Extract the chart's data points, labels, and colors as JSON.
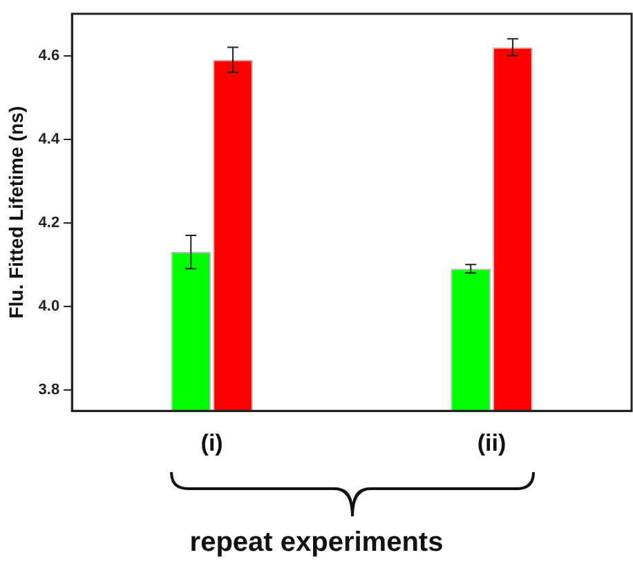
{
  "chart_data": {
    "type": "bar",
    "xlabel": "repeat experiments",
    "ylabel": "Flu. Fitted Lifetime (ns)",
    "categories": [
      "(i)",
      "(ii)"
    ],
    "series": [
      {
        "color": "#00ff00",
        "values": [
          4.13,
          4.09
        ],
        "errors": [
          0.04,
          0.01
        ]
      },
      {
        "color": "#ff0000",
        "values": [
          4.59,
          4.62
        ],
        "errors": [
          0.03,
          0.02
        ]
      }
    ],
    "ylim": [
      3.75,
      4.7
    ],
    "yticks": [
      3.8,
      {
        "value": 4,
        "label": "4.0"
      },
      4.2,
      4.4,
      4.6
    ],
    "grid": false,
    "legend": false
  }
}
